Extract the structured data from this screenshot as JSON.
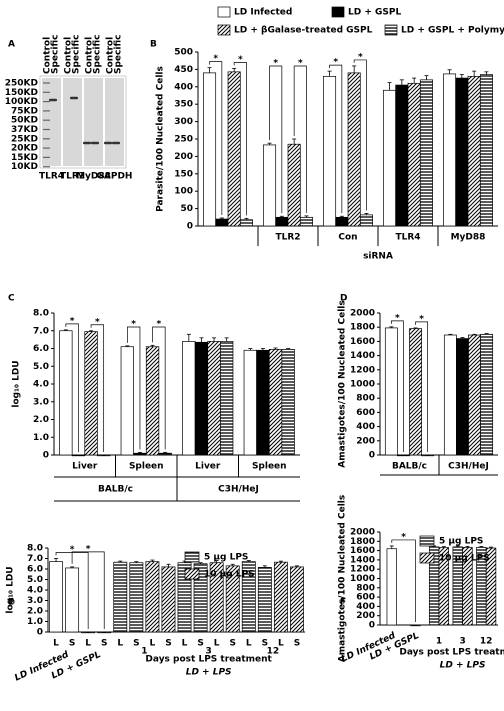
{
  "blot": {
    "panel": "A",
    "markers": [
      "250KD",
      "150KD",
      "100KD",
      "75KD",
      "50KD",
      "37KD",
      "25KD",
      "20KD",
      "15KD",
      "10KD"
    ],
    "lanes": [
      "TLR4",
      "TLR2",
      "MyD88",
      "GAPDH"
    ],
    "columns": [
      "Control",
      "Specific"
    ]
  },
  "chart_data": [
    {
      "type": "bar",
      "panel": "B",
      "ylabel": "Parasite/100 Nucleated Cells",
      "xlabel": "siRNA",
      "categories": [
        null,
        "TLR2",
        "Con",
        "TLR4",
        "MyD88"
      ],
      "ylim": [
        0,
        500
      ],
      "yticks": [
        0,
        50,
        100,
        150,
        200,
        250,
        300,
        350,
        400,
        450,
        500
      ],
      "series": [
        {
          "name": "LD Infected",
          "pattern": "white",
          "values": [
            440,
            233,
            430,
            390,
            437
          ],
          "errors": [
            15,
            5,
            15,
            22,
            12
          ]
        },
        {
          "name": "LD + GSPL",
          "pattern": "black",
          "values": [
            20,
            25,
            25,
            405,
            425
          ],
          "errors": [
            3,
            3,
            3,
            15,
            10
          ]
        },
        {
          "name": "LD + βGalase-treated GSPL",
          "pattern": "diagonal",
          "values": [
            443,
            235,
            440,
            410,
            430
          ],
          "errors": [
            10,
            15,
            20,
            15,
            15
          ]
        },
        {
          "name": "LD + GSPL + Polymyxin B",
          "pattern": "horizontal",
          "values": [
            18,
            25,
            32,
            420,
            435
          ],
          "errors": [
            4,
            4,
            4,
            12,
            8
          ]
        }
      ],
      "significance": [
        {
          "label": "*",
          "from": [
            0,
            0
          ],
          "to": [
            0,
            1
          ]
        },
        {
          "label": "*",
          "from": [
            0,
            2
          ],
          "to": [
            0,
            3
          ]
        },
        {
          "label": "*",
          "from": [
            1,
            0
          ],
          "to": [
            1,
            1
          ]
        },
        {
          "label": "*",
          "from": [
            1,
            2
          ],
          "to": [
            1,
            3
          ]
        },
        {
          "label": "*",
          "from": [
            2,
            0
          ],
          "to": [
            2,
            1
          ]
        },
        {
          "label": "*",
          "from": [
            2,
            2
          ],
          "to": [
            2,
            3
          ]
        }
      ]
    },
    {
      "type": "bar",
      "panel": "C",
      "ylabel": "log₁₀ LDU",
      "categories": [
        "Liver",
        "Spleen",
        "Liver",
        "Spleen"
      ],
      "groups": [
        {
          "label": "BALB/c",
          "span": [
            0,
            1
          ]
        },
        {
          "label": "C3H/HeJ",
          "span": [
            2,
            3
          ]
        }
      ],
      "ylim": [
        0,
        8
      ],
      "yticks": [
        0,
        {
          "value": 1,
          "label": "1.0"
        },
        {
          "value": 2,
          "label": "2.0"
        },
        {
          "value": 3,
          "label": "3.0"
        },
        {
          "value": 4,
          "label": "4.0"
        },
        {
          "value": 5,
          "label": "5.0"
        },
        {
          "value": 6,
          "label": "6.0"
        },
        {
          "value": 7,
          "label": "7.0"
        },
        {
          "value": 8,
          "label": "8.0"
        }
      ],
      "series": [
        {
          "pattern": "white",
          "values": [
            7.0,
            6.1,
            6.4,
            5.9
          ],
          "errors": [
            0.05,
            0.05,
            0.4,
            0.1
          ]
        },
        {
          "pattern": "black",
          "values": [
            0,
            0.1,
            6.35,
            5.9
          ],
          "errors": [
            0,
            0.05,
            0.25,
            0.1
          ]
        },
        {
          "pattern": "diagonal",
          "values": [
            6.95,
            6.1,
            6.4,
            5.95
          ],
          "errors": [
            0.05,
            0.08,
            0.2,
            0.08
          ]
        },
        {
          "pattern": "horizontal",
          "values": [
            0,
            0.1,
            6.4,
            5.95
          ],
          "errors": [
            0,
            0.05,
            0.2,
            0.05
          ]
        }
      ],
      "significance": [
        {
          "label": "*",
          "from": [
            0,
            0
          ],
          "to": [
            0,
            1
          ]
        },
        {
          "label": "*",
          "from": [
            0,
            2
          ],
          "to": [
            0,
            3
          ]
        },
        {
          "label": "*",
          "from": [
            1,
            0
          ],
          "to": [
            1,
            1
          ]
        },
        {
          "label": "*",
          "from": [
            1,
            2
          ],
          "to": [
            1,
            3
          ]
        }
      ]
    },
    {
      "type": "bar",
      "panel": "D",
      "ylabel": "Amastigotes/100 Nucleated Cells",
      "categories": [
        "BALB/c",
        "C3H/HeJ"
      ],
      "ylim": [
        0,
        2000
      ],
      "yticks": [
        0,
        200,
        400,
        600,
        800,
        1000,
        1200,
        1400,
        1600,
        1800,
        2000
      ],
      "series": [
        {
          "pattern": "white",
          "values": [
            1790,
            1690
          ],
          "errors": [
            15,
            10
          ]
        },
        {
          "pattern": "black",
          "values": [
            0,
            1640
          ],
          "errors": [
            0,
            15
          ]
        },
        {
          "pattern": "diagonal",
          "values": [
            1780,
            1690
          ],
          "errors": [
            10,
            10
          ]
        },
        {
          "pattern": "horizontal",
          "values": [
            0,
            1700
          ],
          "errors": [
            0,
            10
          ]
        }
      ],
      "significance": [
        {
          "label": "*",
          "from": [
            0,
            0
          ],
          "to": [
            0,
            1
          ]
        },
        {
          "label": "*",
          "from": [
            0,
            2
          ],
          "to": [
            0,
            3
          ]
        }
      ]
    },
    {
      "type": "bar",
      "panel": "E",
      "ylabel": "log₁₀ LDU",
      "xlabel": "Days post LPS treatment",
      "xlabel2": "LD + LPS",
      "categories": [
        "L",
        "S",
        "L",
        "S",
        "L",
        "S",
        "L",
        "S",
        "L",
        "S",
        "L",
        "S",
        "L",
        "S",
        "L",
        "S"
      ],
      "groups": [
        {
          "label": "LD Infected",
          "span": [
            0,
            1
          ]
        },
        {
          "label": "LD + GSPL",
          "span": [
            2,
            3
          ]
        },
        {
          "label": "1",
          "span": [
            4,
            7
          ]
        },
        {
          "label": "3",
          "span": [
            8,
            11
          ]
        },
        {
          "label": "12",
          "span": [
            12,
            15
          ]
        }
      ],
      "ylim": [
        0,
        8
      ],
      "yticks": [
        0,
        {
          "value": 1,
          "label": "1.0"
        },
        {
          "value": 2,
          "label": "2.0"
        },
        {
          "value": 3,
          "label": "3.0"
        },
        {
          "value": 4,
          "label": "4.0"
        },
        {
          "value": 5,
          "label": "5.0"
        },
        {
          "value": 6,
          "label": "6.0"
        },
        {
          "value": 7,
          "label": "7.0"
        },
        {
          "value": 8,
          "label": "8.0"
        }
      ],
      "series": [
        {
          "pattern": "white",
          "values": [
            6.7,
            6.1,
            0,
            0,
            null,
            null,
            null,
            null,
            null,
            null,
            null,
            null,
            null,
            null,
            null,
            null
          ],
          "errors": [
            0.3,
            0.1,
            0,
            0,
            null,
            null,
            null,
            null,
            null,
            null,
            null,
            null,
            null,
            null,
            null,
            null
          ]
        },
        {
          "name": "5 µg LPS",
          "pattern": "horizontal",
          "values": [
            null,
            null,
            null,
            null,
            6.65,
            6.6,
            null,
            null,
            6.6,
            6.5,
            null,
            null,
            6.7,
            6.15,
            null,
            null
          ],
          "errors": [
            null,
            null,
            null,
            null,
            0.1,
            0.1,
            null,
            null,
            0.15,
            0.1,
            null,
            null,
            0.1,
            0.15,
            null,
            null
          ]
        },
        {
          "name": "10 µg LPS",
          "pattern": "diagonal",
          "values": [
            null,
            null,
            null,
            null,
            null,
            null,
            6.7,
            6.2,
            null,
            null,
            6.6,
            6.3,
            null,
            null,
            6.65,
            6.2
          ],
          "errors": [
            null,
            null,
            null,
            null,
            null,
            null,
            0.15,
            0.25,
            null,
            null,
            0.2,
            0.15,
            null,
            null,
            0.1,
            0.1
          ]
        }
      ],
      "significance": [
        {
          "label": "*",
          "from": [
            0,
            0
          ],
          "to": [
            2,
            0
          ]
        },
        {
          "label": "*",
          "from": [
            1,
            0
          ],
          "to": [
            3,
            0
          ]
        }
      ]
    },
    {
      "type": "bar",
      "panel": "F",
      "ylabel": "Amastigotes/100 Nucleated Cells",
      "xlabel": "Days post LPS treatment",
      "xlabel2": "LD + LPS",
      "categories": [
        "LD Infected",
        "LD + GSPL",
        "1",
        "3",
        "12"
      ],
      "ylim": [
        0,
        2000
      ],
      "yticks": [
        0,
        200,
        400,
        600,
        800,
        1000,
        1200,
        1400,
        1600,
        1800,
        2000
      ],
      "series": [
        {
          "pattern": "white",
          "values": [
            1640,
            0,
            null,
            null,
            null
          ],
          "errors": [
            60,
            0,
            null,
            null,
            null
          ]
        },
        {
          "name": "5 µg LPS",
          "pattern": "horizontal",
          "values": [
            null,
            null,
            1680,
            1680,
            1670
          ],
          "errors": [
            null,
            null,
            20,
            20,
            20
          ]
        },
        {
          "name": "10 µg LPS",
          "pattern": "diagonal",
          "values": [
            null,
            null,
            1665,
            1670,
            1655
          ],
          "errors": [
            null,
            null,
            20,
            20,
            20
          ]
        }
      ],
      "significance": [
        {
          "label": "*",
          "from": [
            0,
            0
          ],
          "to": [
            1,
            0
          ]
        }
      ]
    }
  ]
}
